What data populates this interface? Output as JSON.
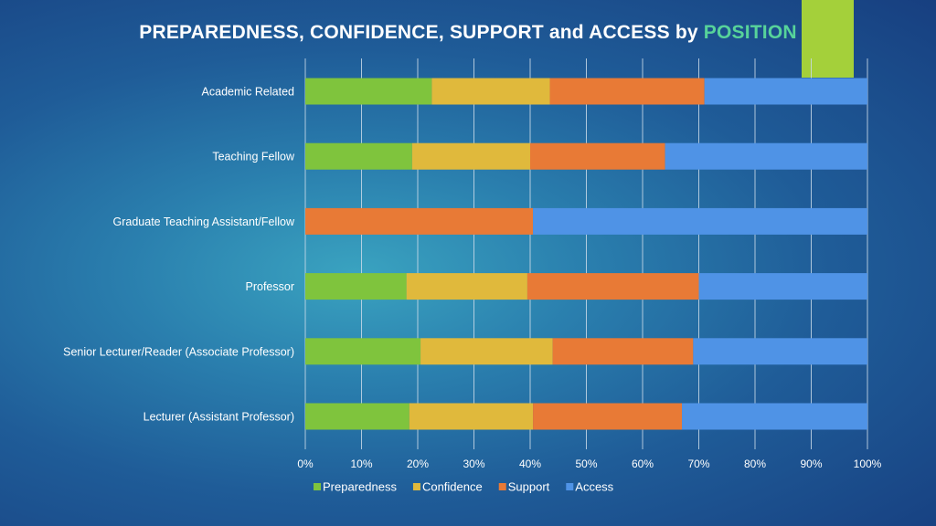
{
  "title": {
    "main": "PREPAREDNESS, CONFIDENCE, SUPPORT and ACCESS by",
    "highlight": "POSITION"
  },
  "colors": {
    "accent_bar": "#a4d03a",
    "title_highlight": "#57d39a",
    "grid": "#c9d9e8"
  },
  "chart_data": {
    "type": "bar",
    "orientation": "horizontal",
    "stacked": "percent",
    "categories": [
      "Academic Related",
      "Teaching Fellow",
      "Graduate Teaching Assistant/Fellow",
      "Professor",
      "Senior Lecturer/Reader (Associate Professor)",
      "Lecturer (Assistant Professor)"
    ],
    "series": [
      {
        "name": "Preparedness",
        "color": "#7fc43d",
        "values": [
          22.5,
          19,
          0,
          18,
          20.5,
          18.5
        ]
      },
      {
        "name": "Confidence",
        "color": "#e0b93c",
        "values": [
          21,
          21,
          0,
          21.5,
          23.5,
          22
        ]
      },
      {
        "name": "Support",
        "color": "#e87a36",
        "values": [
          27.5,
          24,
          40.5,
          30.5,
          25,
          26.5
        ]
      },
      {
        "name": "Access",
        "color": "#4f93e6",
        "values": [
          29,
          36,
          59.5,
          30,
          31,
          33
        ]
      }
    ],
    "xlim": [
      0,
      100
    ],
    "xticks": [
      "0%",
      "10%",
      "20%",
      "30%",
      "40%",
      "50%",
      "60%",
      "70%",
      "80%",
      "90%",
      "100%"
    ],
    "grid": true,
    "legend": "bottom"
  }
}
